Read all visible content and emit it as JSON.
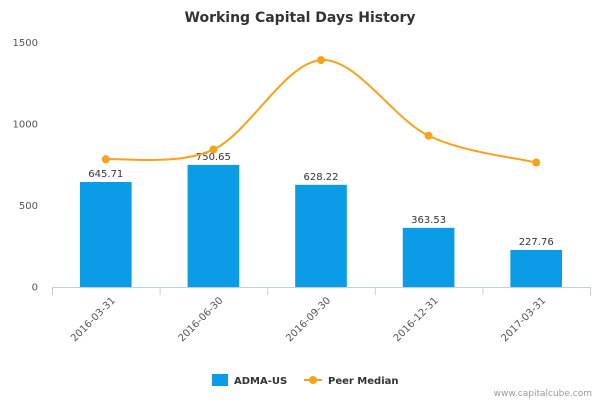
{
  "chart_data": {
    "type": "bar",
    "title": "Working Capital Days History",
    "categories": [
      "2016-03-31",
      "2016-06-30",
      "2016-09-30",
      "2016-12-31",
      "2017-03-31"
    ],
    "series": [
      {
        "name": "ADMA-US",
        "type": "bar",
        "values": [
          645.71,
          750.65,
          628.22,
          363.53,
          227.76
        ],
        "labels": [
          "645.71",
          "750.65",
          "628.22",
          "363.53",
          "227.76"
        ]
      },
      {
        "name": "Peer Median",
        "type": "line",
        "values": [
          785,
          845,
          1395,
          930,
          765
        ]
      }
    ],
    "yticks": [
      "0",
      "500",
      "1000",
      "1500"
    ],
    "ylim": [
      0,
      1500
    ],
    "grid": false,
    "legend_position": "bottom"
  },
  "colors": {
    "bar": "#0a9ce6",
    "line": "#f7a21b",
    "axis": "#c0d0e0"
  },
  "credit": "www.capitalcube.com"
}
